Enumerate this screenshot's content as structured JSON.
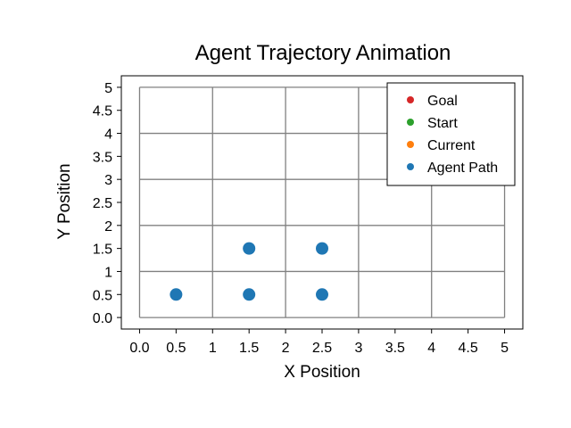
{
  "chart_data": {
    "type": "scatter",
    "title": "Agent Trajectory Animation",
    "xlabel": "X Position",
    "ylabel": "Y Position",
    "xlim": [
      -0.25,
      5.25
    ],
    "ylim": [
      -0.25,
      5.25
    ],
    "grid": true,
    "legend_position": "top-right",
    "x_ticks": [
      {
        "value": 0,
        "label": "0.0"
      },
      {
        "value": 0.5,
        "label": "0.5"
      },
      {
        "value": 1,
        "label": "1"
      },
      {
        "value": 1.5,
        "label": "1.5"
      },
      {
        "value": 2,
        "label": "2"
      },
      {
        "value": 2.5,
        "label": "2.5"
      },
      {
        "value": 3,
        "label": "3"
      },
      {
        "value": 3.5,
        "label": "3.5"
      },
      {
        "value": 4,
        "label": "4"
      },
      {
        "value": 4.5,
        "label": "4.5"
      },
      {
        "value": 5,
        "label": "5"
      }
    ],
    "y_ticks": [
      {
        "value": 0,
        "label": "0.0"
      },
      {
        "value": 0.5,
        "label": "0.5"
      },
      {
        "value": 1,
        "label": "1"
      },
      {
        "value": 1.5,
        "label": "1.5"
      },
      {
        "value": 2,
        "label": "2"
      },
      {
        "value": 2.5,
        "label": "2.5"
      },
      {
        "value": 3,
        "label": "3"
      },
      {
        "value": 3.5,
        "label": "3.5"
      },
      {
        "value": 4,
        "label": "4"
      },
      {
        "value": 4.5,
        "label": "4.5"
      },
      {
        "value": 5,
        "label": "5"
      }
    ],
    "grid_lines": [
      0,
      1,
      2,
      3,
      4,
      5
    ],
    "series": [
      {
        "name": "Goal",
        "color": "#d62728",
        "alpha": 0.25,
        "points": [
          {
            "x": 4.5,
            "y": 4.5
          }
        ]
      },
      {
        "name": "Start",
        "color": "#2ca02c",
        "alpha": 1,
        "points": []
      },
      {
        "name": "Current",
        "color": "#ff7f0e",
        "alpha": 1,
        "points": []
      },
      {
        "name": "Agent Path",
        "color": "#1f77b4",
        "alpha": 1,
        "points": [
          {
            "x": 0.5,
            "y": 0.5
          },
          {
            "x": 1.5,
            "y": 0.5
          },
          {
            "x": 2.5,
            "y": 0.5
          },
          {
            "x": 1.5,
            "y": 1.5
          },
          {
            "x": 2.5,
            "y": 1.5
          }
        ]
      }
    ]
  }
}
